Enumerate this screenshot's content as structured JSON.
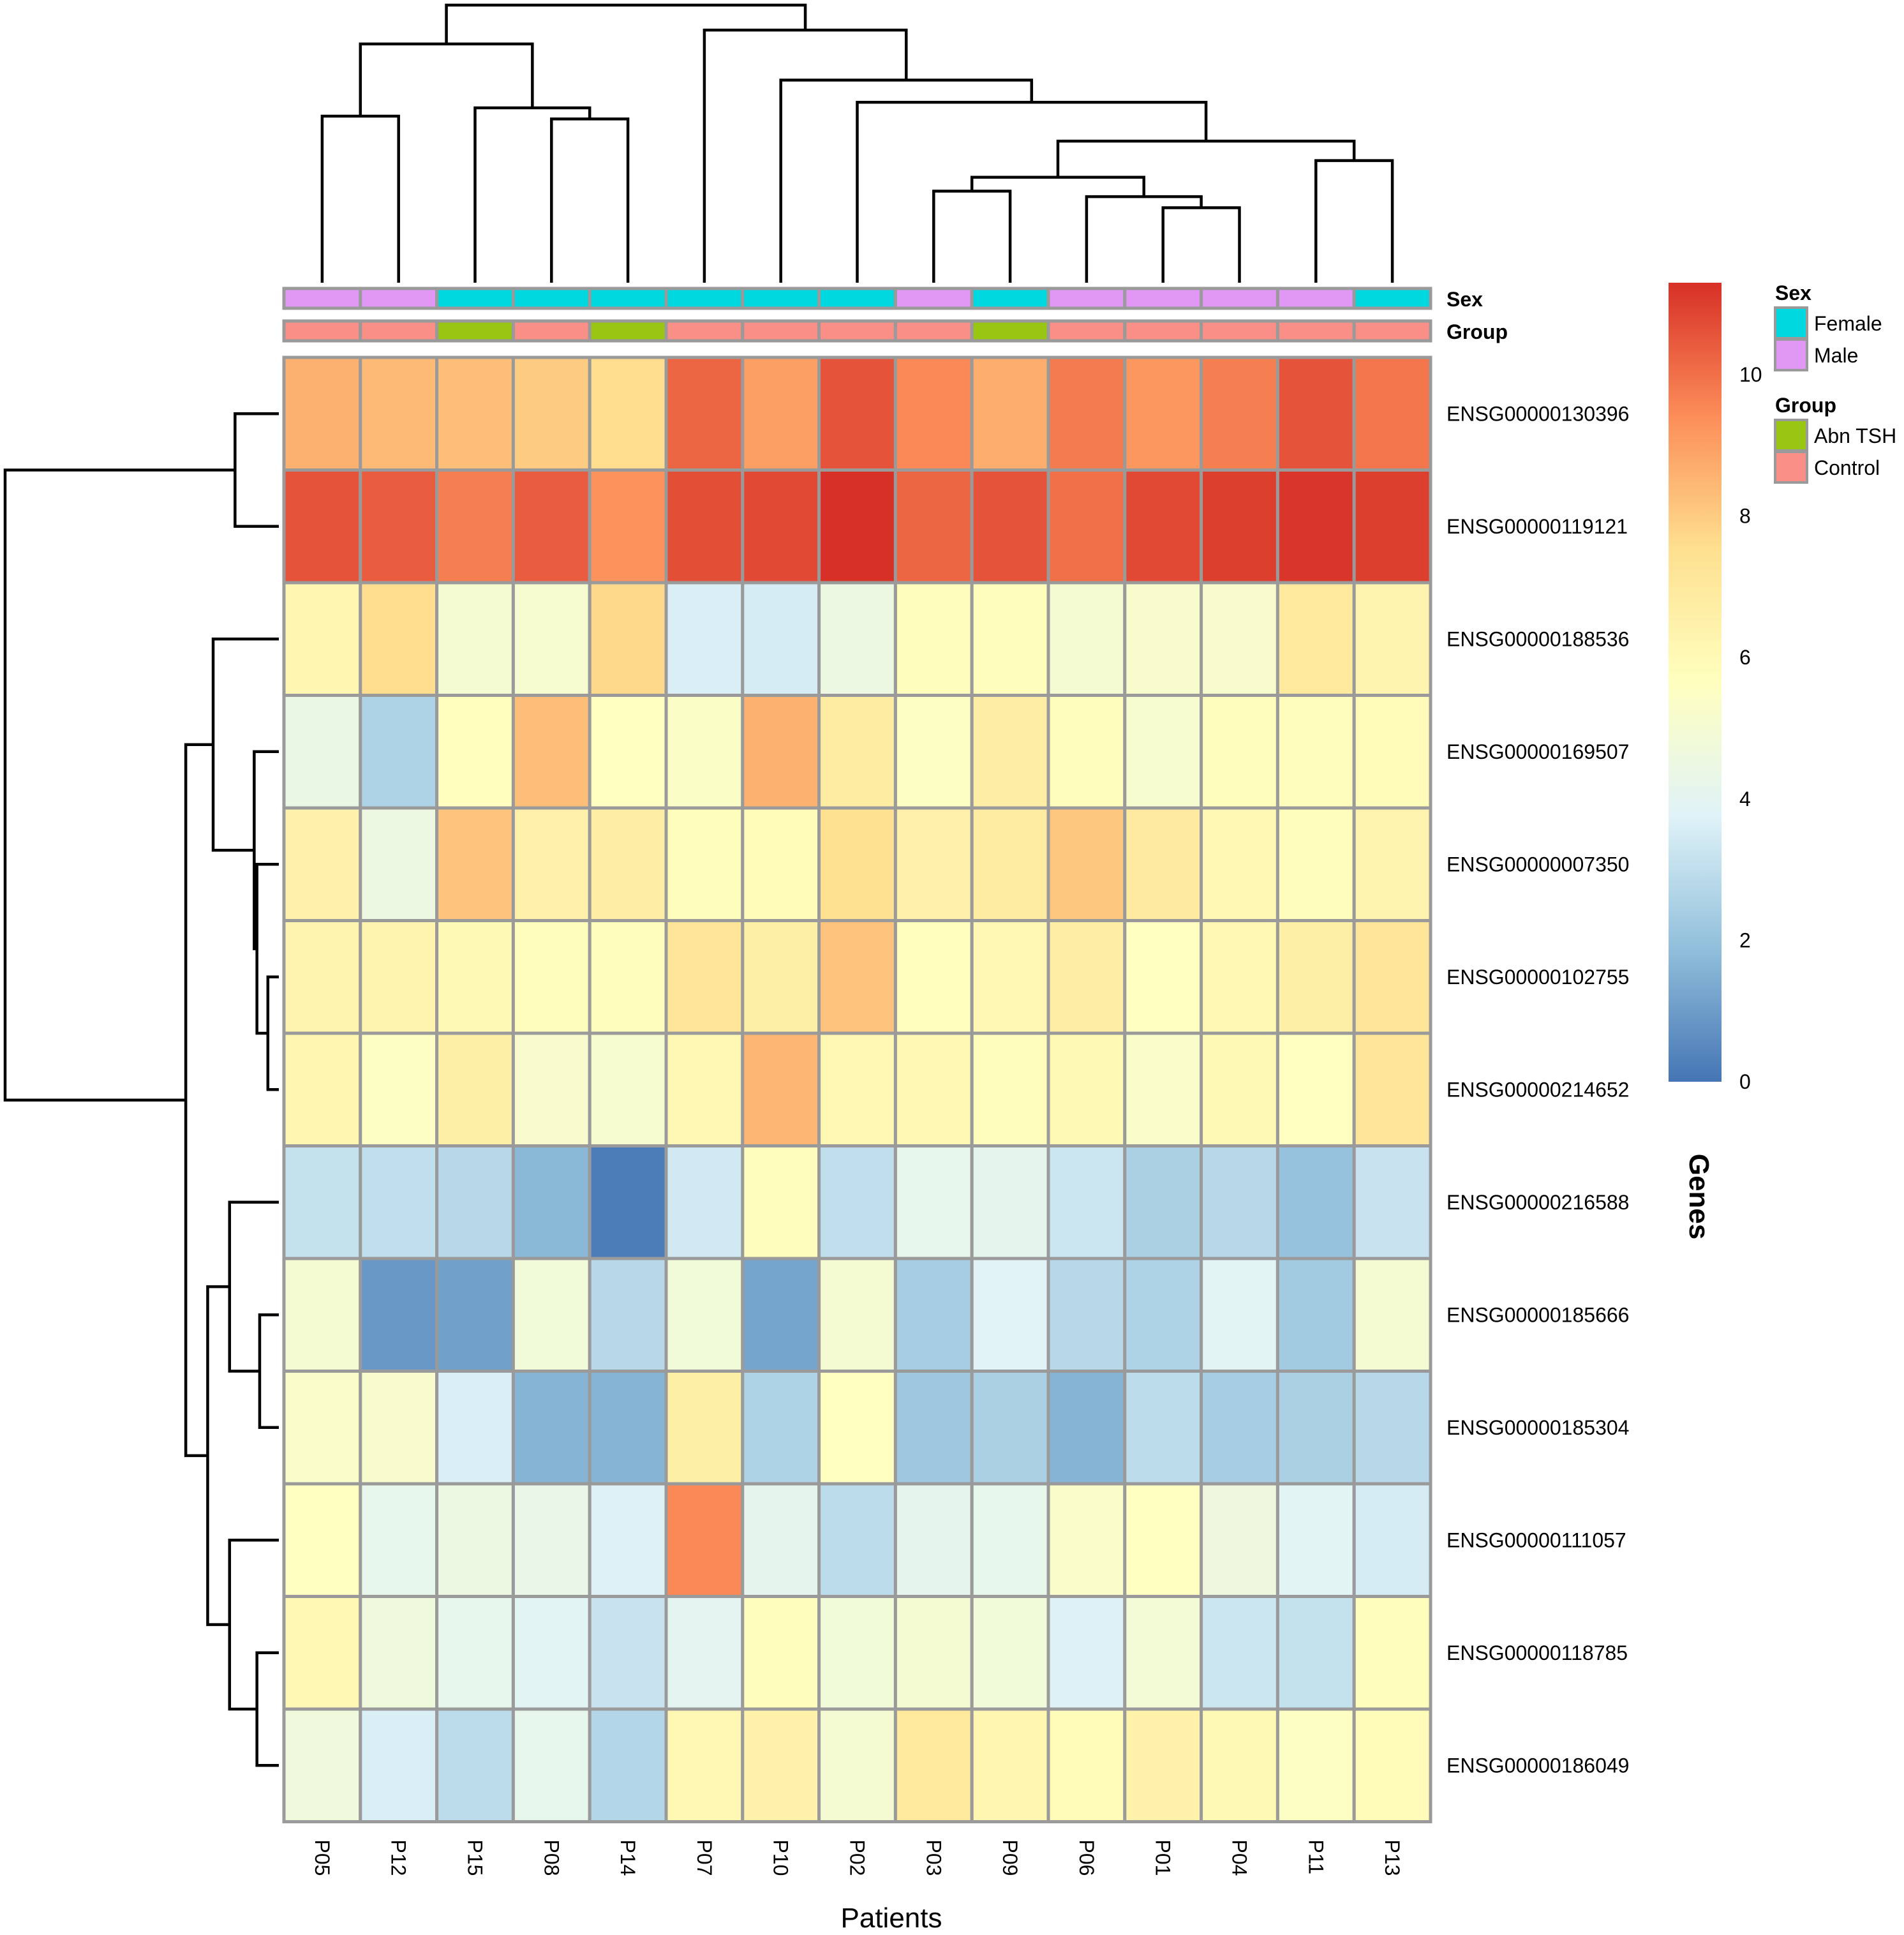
{
  "chart_data": {
    "type": "heatmap",
    "title": "",
    "xlabel": "Patients",
    "ylabel": "Genes",
    "columns": [
      "P05",
      "P12",
      "P15",
      "P08",
      "P14",
      "P07",
      "P10",
      "P02",
      "P03",
      "P09",
      "P06",
      "P01",
      "P04",
      "P11",
      "P13"
    ],
    "rows": [
      "ENSG00000130396",
      "ENSG00000119121",
      "ENSG00000188536",
      "ENSG00000169507",
      "ENSG00000007350",
      "ENSG00000102755",
      "ENSG00000214652",
      "ENSG00000216588",
      "ENSG00000185666",
      "ENSG00000185304",
      "ENSG00000111057",
      "ENSG00000118785",
      "ENSG00000186049"
    ],
    "values": [
      [
        8.6,
        8.4,
        8.3,
        8.0,
        7.6,
        10.2,
        9.0,
        10.6,
        9.5,
        8.7,
        9.8,
        9.2,
        9.7,
        10.6,
        9.9
      ],
      [
        10.6,
        10.4,
        9.7,
        10.4,
        9.3,
        10.7,
        10.8,
        11.3,
        10.2,
        10.6,
        10.0,
        10.8,
        11.0,
        11.2,
        11.0
      ],
      [
        6.2,
        7.6,
        5.0,
        5.1,
        7.7,
        3.6,
        3.5,
        4.5,
        5.8,
        5.8,
        5.0,
        5.2,
        5.2,
        7.0,
        6.3
      ],
      [
        4.4,
        2.6,
        5.7,
        8.3,
        5.6,
        5.4,
        8.6,
        6.8,
        5.5,
        6.7,
        5.8,
        5.1,
        5.8,
        5.8,
        5.9
      ],
      [
        6.4,
        4.5,
        8.2,
        6.5,
        6.7,
        5.8,
        5.9,
        7.5,
        6.5,
        6.8,
        8.1,
        6.9,
        6.1,
        5.8,
        6.3
      ],
      [
        6.3,
        6.3,
        6.0,
        5.8,
        5.8,
        7.2,
        6.6,
        8.2,
        5.7,
        6.1,
        6.7,
        5.6,
        6.1,
        6.6,
        7.2
      ],
      [
        6.2,
        5.5,
        6.6,
        5.2,
        5.1,
        6.1,
        8.5,
        6.1,
        6.1,
        5.8,
        6.0,
        5.3,
        6.0,
        5.6,
        7.2
      ],
      [
        3.1,
        3.0,
        2.8,
        1.7,
        0.2,
        3.4,
        5.8,
        3.0,
        4.2,
        4.1,
        3.3,
        2.5,
        2.8,
        2.0,
        3.2
      ],
      [
        5.0,
        0.9,
        1.1,
        4.8,
        2.8,
        4.8,
        1.2,
        5.0,
        2.4,
        3.8,
        2.8,
        2.6,
        3.9,
        2.3,
        5.0
      ],
      [
        5.3,
        5.2,
        3.6,
        1.6,
        1.6,
        6.6,
        2.6,
        5.6,
        2.2,
        2.5,
        1.6,
        2.9,
        2.4,
        2.5,
        2.8
      ],
      [
        5.6,
        4.2,
        4.5,
        4.3,
        3.7,
        9.5,
        4.1,
        2.9,
        4.1,
        4.2,
        5.3,
        5.6,
        4.6,
        3.9,
        3.5
      ],
      [
        6.1,
        4.7,
        4.2,
        3.9,
        3.2,
        4.0,
        5.8,
        4.8,
        5.0,
        4.8,
        3.7,
        4.9,
        3.3,
        3.1,
        5.8
      ],
      [
        4.7,
        3.6,
        2.9,
        4.2,
        2.7,
        6.1,
        6.4,
        5.0,
        7.0,
        6.2,
        5.9,
        6.4,
        6.0,
        5.5,
        5.9
      ]
    ],
    "value_range": [
      0,
      11.3
    ],
    "colorbar": {
      "ticks": [
        0,
        2,
        4,
        6,
        8,
        10
      ],
      "colors": [
        "#4575b4",
        "#91bfdb",
        "#e0f3f8",
        "#ffffbf",
        "#fee090",
        "#fc8d59",
        "#d73027"
      ]
    },
    "annotations": {
      "Sex": [
        "Male",
        "Male",
        "Female",
        "Female",
        "Female",
        "Female",
        "Female",
        "Female",
        "Male",
        "Female",
        "Male",
        "Male",
        "Male",
        "Male",
        "Female"
      ],
      "Group": [
        "Control",
        "Control",
        "Abn TSH",
        "Control",
        "Abn TSH",
        "Control",
        "Control",
        "Control",
        "Control",
        "Abn TSH",
        "Control",
        "Control",
        "Control",
        "Control",
        "Control"
      ]
    },
    "legend": {
      "Sex": [
        {
          "label": "Female",
          "color": "#00d8e0"
        },
        {
          "label": "Male",
          "color": "#e197f4"
        }
      ],
      "Group": [
        {
          "label": "Abn TSH",
          "color": "#99c513"
        },
        {
          "label": "Control",
          "color": "#f98f86"
        }
      ]
    },
    "col_dendrogram": {
      "leaves": [
        "P05",
        "P12",
        "P15",
        "P08",
        "P14",
        "P07",
        "P10",
        "P02",
        "P03",
        "P09",
        "P06",
        "P01",
        "P04",
        "P11",
        "P13"
      ],
      "merges": [
        {
          "a": "P05",
          "b": "P12",
          "height": 0.6
        },
        {
          "a": "P08",
          "b": "P14",
          "height": 0.59
        },
        {
          "a": "P15",
          "b": "P08+P14",
          "height": 0.63
        },
        {
          "a": "P05+P12",
          "b": "P15+P08+P14",
          "height": 0.86
        },
        {
          "a": "P03",
          "b": "P09",
          "height": 0.33
        },
        {
          "a": "P01",
          "b": "P04",
          "height": 0.27
        },
        {
          "a": "P06",
          "b": "P01+P04",
          "height": 0.31
        },
        {
          "a": "P03+P09",
          "b": "P06+P01+P04",
          "height": 0.38
        },
        {
          "a": "P11",
          "b": "P13",
          "height": 0.44
        },
        {
          "a": "P03..P04",
          "b": "P11+P13",
          "height": 0.51
        },
        {
          "a": "P02",
          "b": "P03..P13",
          "height": 0.65
        },
        {
          "a": "P10",
          "b": "P02..P13",
          "height": 0.73
        },
        {
          "a": "P07",
          "b": "P10..P13",
          "height": 0.91
        },
        {
          "a": "P05..P14",
          "b": "P07..P13",
          "height": 1.0
        }
      ]
    },
    "row_dendrogram": {
      "leaves": [
        "ENSG00000130396",
        "ENSG00000119121",
        "ENSG00000188536",
        "ENSG00000169507",
        "ENSG00000007350",
        "ENSG00000102755",
        "ENSG00000214652",
        "ENSG00000216588",
        "ENSG00000185666",
        "ENSG00000185304",
        "ENSG00000111057",
        "ENSG00000118785",
        "ENSG00000186049"
      ],
      "merges": [
        {
          "a": "ENSG00000130396",
          "b": "ENSG00000119121",
          "height": 0.16
        },
        {
          "a": "ENSG00000102755",
          "b": "ENSG00000214652",
          "height": 0.04
        },
        {
          "a": "ENSG00000007350",
          "b": "ENSG00000102755+ENSG00000214652",
          "height": 0.08
        },
        {
          "a": "ENSG00000169507",
          "b": "ENSG00000007350..ENSG00000214652",
          "height": 0.09
        },
        {
          "a": "ENSG00000188536",
          "b": "ENSG00000169507..ENSG00000214652",
          "height": 0.24
        },
        {
          "a": "ENSG00000185666",
          "b": "ENSG00000185304",
          "height": 0.07
        },
        {
          "a": "ENSG00000216588",
          "b": "ENSG00000185666+ENSG00000185304",
          "height": 0.18
        },
        {
          "a": "ENSG00000118785",
          "b": "ENSG00000186049",
          "height": 0.08
        },
        {
          "a": "ENSG00000111057",
          "b": "ENSG00000118785+ENSG00000186049",
          "height": 0.18
        },
        {
          "a": "ENSG00000216588..ENSG00000185304",
          "b": "ENSG00000111057..ENSG00000186049",
          "height": 0.26
        },
        {
          "a": "ENSG00000188536..ENSG00000214652",
          "b": "ENSG00000216588..ENSG00000186049",
          "height": 0.34
        },
        {
          "a": "ENSG00000130396+ENSG00000119121",
          "b": "ENSG00000188536..ENSG00000186049",
          "height": 1.0
        }
      ]
    }
  }
}
